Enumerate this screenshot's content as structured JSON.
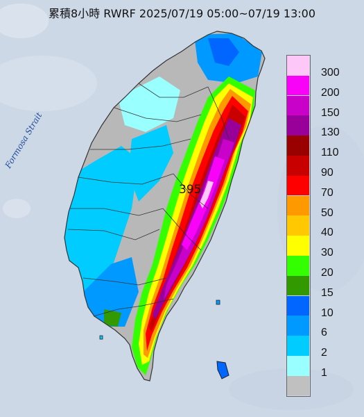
{
  "title": "累積8小時 RWRF 2025/07/19 05:00~07/19 13:00",
  "strait_label": "Formosa Strait",
  "peak_value": "395",
  "legend": {
    "items": [
      {
        "label": "300",
        "color": "#fdc8f8"
      },
      {
        "label": "200",
        "color": "#f803f8"
      },
      {
        "label": "150",
        "color": "#c802c8"
      },
      {
        "label": "130",
        "color": "#990099"
      },
      {
        "label": "110",
        "color": "#990000"
      },
      {
        "label": "90",
        "color": "#c80000"
      },
      {
        "label": "70",
        "color": "#ff0000"
      },
      {
        "label": "50",
        "color": "#ff9900"
      },
      {
        "label": "40",
        "color": "#ffc800"
      },
      {
        "label": "30",
        "color": "#ffff00"
      },
      {
        "label": "20",
        "color": "#33ff00"
      },
      {
        "label": "15",
        "color": "#339900"
      },
      {
        "label": "10",
        "color": "#0066ff"
      },
      {
        "label": "6",
        "color": "#0099ff"
      },
      {
        "label": "2",
        "color": "#00ccff"
      },
      {
        "label": "1",
        "color": "#99ffff"
      },
      {
        "label": "",
        "color": "#c0c0c0"
      }
    ]
  },
  "colors": {
    "sea": "#cdd8e6",
    "land_none": "#b8b8b8"
  }
}
